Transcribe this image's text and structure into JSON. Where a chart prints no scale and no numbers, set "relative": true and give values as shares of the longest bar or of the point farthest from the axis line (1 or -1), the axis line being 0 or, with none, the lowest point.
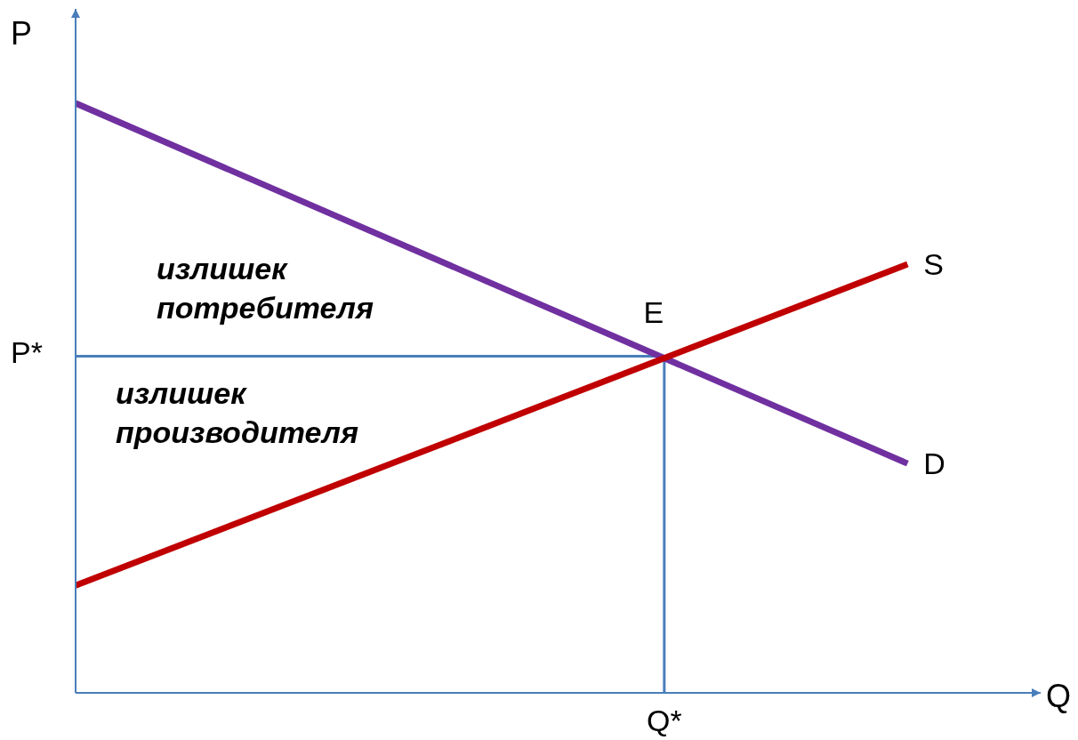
{
  "chart_data": {
    "type": "line",
    "relative": true,
    "xlabel": "Q",
    "ylabel": "P",
    "categories": [
      null,
      null
    ],
    "series": [
      {
        "name": "D",
        "color": "#7030a0",
        "values": [
          1,
          0.389
        ]
      },
      {
        "name": "S",
        "color": "#c00000",
        "values": [
          0.182,
          0.727
        ]
      }
    ],
    "ref_lines": [
      {
        "axis": "y",
        "value": 0.571,
        "label": "P*",
        "color": "#4a7ebb"
      },
      {
        "axis": "x",
        "label": "Q*",
        "color": "#4a7ebb"
      }
    ],
    "annotations": [
      "E",
      "излишек потребителя",
      "излишек производителя"
    ],
    "marker": "none",
    "line_style": "solid"
  }
}
